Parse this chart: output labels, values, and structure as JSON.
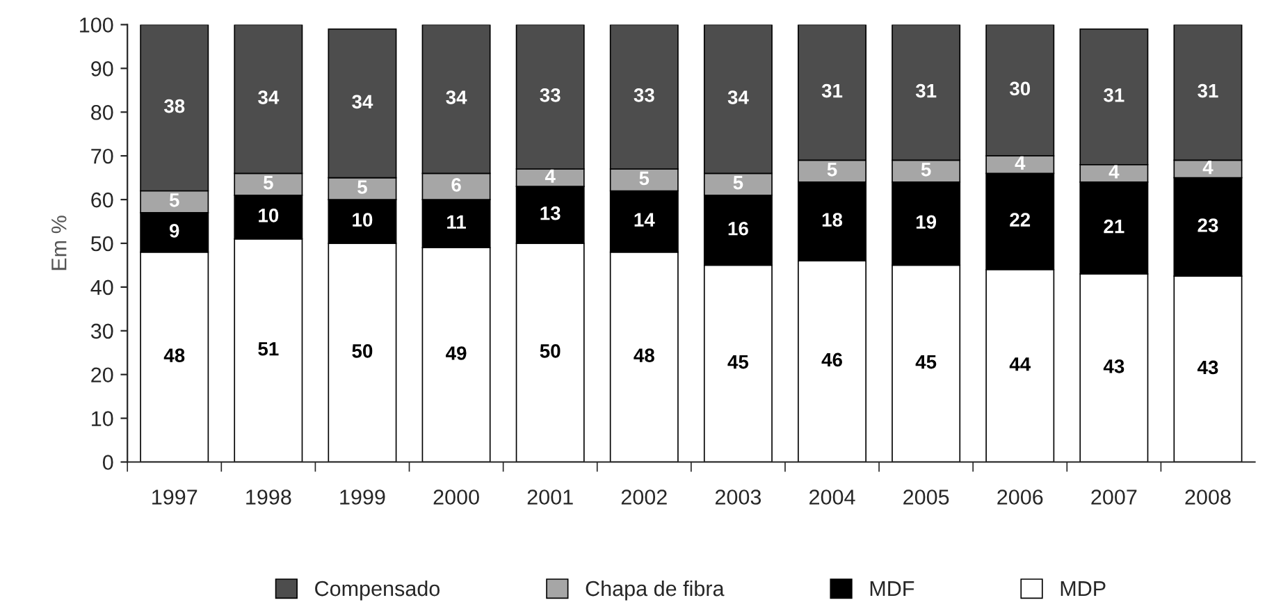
{
  "chart_data": {
    "type": "bar",
    "stacked": true,
    "ylabel": "Em %",
    "categories": [
      "1997",
      "1998",
      "1999",
      "2000",
      "2001",
      "2002",
      "2003",
      "2004",
      "2005",
      "2006",
      "2007",
      "2008"
    ],
    "series": [
      {
        "name": "MDP",
        "color": "#ffffff",
        "values": [
          48,
          51,
          50,
          49,
          50,
          48,
          45,
          46,
          45,
          44,
          43,
          42.5
        ],
        "value_labels": [
          "48",
          "51",
          "50",
          "49",
          "50",
          "48",
          "45",
          "46",
          "45",
          "44",
          "43",
          "43"
        ]
      },
      {
        "name": "MDF",
        "color": "#000000",
        "values": [
          9,
          10,
          10,
          11,
          13,
          14,
          16,
          18,
          19,
          22,
          21,
          22.5
        ],
        "value_labels": [
          "9",
          "10",
          "10",
          "11",
          "13",
          "14",
          "16",
          "18",
          "19",
          "22",
          "21",
          "23"
        ]
      },
      {
        "name": "Chapa de fibra",
        "color": "#a6a6a6",
        "values": [
          5,
          5,
          5,
          6,
          4,
          5,
          5,
          5,
          5,
          4,
          4,
          4
        ],
        "value_labels": [
          "5",
          "5",
          "5",
          "6",
          "4",
          "5",
          "5",
          "5",
          "5",
          "4",
          "4",
          "4"
        ]
      },
      {
        "name": "Compensado",
        "color": "#4d4d4d",
        "values": [
          38,
          34,
          34,
          34,
          33,
          33,
          34,
          31,
          31,
          30,
          31,
          31
        ],
        "value_labels": [
          "38",
          "34",
          "34",
          "34",
          "33",
          "33",
          "34",
          "31",
          "31",
          "30",
          "31",
          "31"
        ]
      }
    ],
    "ylim": [
      0,
      100
    ],
    "yticks": [
      0,
      10,
      20,
      30,
      40,
      50,
      60,
      70,
      80,
      90,
      100
    ],
    "legend": "bottom",
    "grid": false
  }
}
